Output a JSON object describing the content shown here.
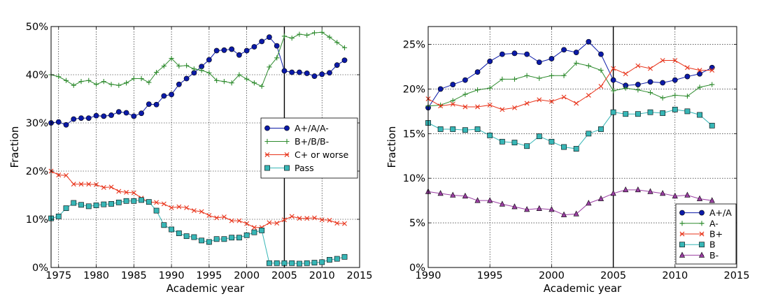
{
  "chart_data": [
    {
      "type": "line",
      "xlabel": "Academic year",
      "ylabel": "Fraction",
      "xlim": [
        1974,
        2015
      ],
      "ylim": [
        0,
        50
      ],
      "xticks": [
        1975,
        1980,
        1985,
        1990,
        1995,
        2000,
        2005,
        2010,
        2015
      ],
      "yticks": [
        0,
        10,
        20,
        30,
        40,
        50
      ],
      "ytick_labels": [
        "0%",
        "10%",
        "20%",
        "30%",
        "40%",
        "50%"
      ],
      "grid": true,
      "vline": 2005,
      "legend_position": "center-right",
      "x": [
        1974,
        1975,
        1976,
        1977,
        1978,
        1979,
        1980,
        1981,
        1982,
        1983,
        1984,
        1985,
        1986,
        1987,
        1988,
        1989,
        1990,
        1991,
        1992,
        1993,
        1994,
        1995,
        1996,
        1997,
        1998,
        1999,
        2000,
        2001,
        2002,
        2003,
        2004,
        2005,
        2006,
        2007,
        2008,
        2009,
        2010,
        2011,
        2012,
        2013
      ],
      "series": [
        {
          "name": "A+/A/A-",
          "color": "#0b1aa8",
          "marker": "circle",
          "values": [
            30.0,
            30.2,
            29.6,
            30.8,
            31.0,
            31.0,
            31.5,
            31.4,
            31.6,
            32.3,
            32.1,
            31.4,
            32.0,
            33.9,
            33.8,
            35.6,
            35.9,
            38.0,
            39.2,
            40.4,
            41.7,
            43.1,
            45.0,
            45.1,
            45.3,
            44.1,
            45.0,
            45.8,
            46.9,
            47.8,
            46.0,
            40.8,
            40.5,
            40.5,
            40.3,
            39.7,
            40.1,
            40.4,
            42.0,
            43.0
          ]
        },
        {
          "name": "B+/B/B-",
          "color": "#2e8b2e",
          "marker": "plus",
          "values": [
            40.0,
            39.6,
            38.8,
            37.8,
            38.6,
            38.8,
            38.0,
            38.6,
            38.0,
            37.8,
            38.3,
            39.2,
            39.2,
            38.4,
            40.5,
            41.8,
            43.4,
            41.8,
            41.9,
            41.2,
            40.9,
            40.4,
            38.8,
            38.6,
            38.3,
            40.0,
            39.1,
            38.3,
            37.6,
            41.6,
            43.5,
            48.0,
            47.6,
            48.4,
            48.2,
            48.7,
            48.8,
            47.8,
            46.7,
            45.6
          ]
        },
        {
          "name": "C+ or worse",
          "color": "#e8331a",
          "marker": "x",
          "values": [
            20.0,
            19.2,
            19.1,
            17.3,
            17.3,
            17.3,
            17.2,
            16.6,
            16.7,
            15.8,
            15.6,
            15.5,
            14.4,
            13.6,
            13.5,
            13.2,
            12.4,
            12.6,
            12.4,
            11.8,
            11.6,
            10.8,
            10.3,
            10.5,
            9.7,
            9.7,
            9.1,
            8.3,
            8.3,
            9.3,
            9.2,
            9.9,
            10.6,
            10.2,
            10.2,
            10.3,
            9.9,
            9.8,
            9.2,
            9.1
          ]
        },
        {
          "name": "Pass",
          "color": "#37b6b6",
          "marker": "square",
          "values": [
            10.2,
            10.6,
            12.3,
            13.4,
            13.0,
            12.7,
            12.9,
            13.1,
            13.2,
            13.5,
            13.8,
            13.8,
            14.0,
            13.6,
            11.8,
            8.8,
            7.9,
            7.1,
            6.5,
            6.3,
            5.6,
            5.3,
            5.9,
            5.9,
            6.2,
            6.2,
            6.7,
            7.3,
            7.7,
            0.9,
            0.9,
            0.9,
            0.9,
            0.8,
            0.9,
            1.0,
            1.1,
            1.6,
            1.8,
            2.2
          ]
        }
      ]
    },
    {
      "type": "line",
      "xlabel": "Academic year",
      "ylabel": "Fraction",
      "xlim": [
        1990,
        2015
      ],
      "ylim": [
        0,
        27
      ],
      "xticks": [
        1990,
        1995,
        2000,
        2005,
        2010,
        2015
      ],
      "yticks": [
        0,
        5,
        10,
        15,
        20,
        25
      ],
      "ytick_labels": [
        "0%",
        "5%",
        "10%",
        "15%",
        "20%",
        "25%"
      ],
      "grid": true,
      "vline": 2005,
      "legend_position": "lower-right",
      "x": [
        1990,
        1991,
        1992,
        1993,
        1994,
        1995,
        1996,
        1997,
        1998,
        1999,
        2000,
        2001,
        2002,
        2003,
        2004,
        2005,
        2006,
        2007,
        2008,
        2009,
        2010,
        2011,
        2012,
        2013
      ],
      "series": [
        {
          "name": "A+/A",
          "color": "#0b1aa8",
          "marker": "circle",
          "values": [
            17.9,
            20.0,
            20.5,
            21.0,
            21.9,
            23.1,
            23.9,
            24.0,
            23.9,
            23.0,
            23.4,
            24.4,
            24.1,
            25.3,
            23.9,
            21.0,
            20.4,
            20.5,
            20.8,
            20.7,
            21.0,
            21.4,
            21.7,
            22.4
          ]
        },
        {
          "name": "A-",
          "color": "#2e8b2e",
          "marker": "plus",
          "values": [
            18.1,
            18.2,
            18.7,
            19.4,
            19.9,
            20.1,
            21.1,
            21.1,
            21.5,
            21.2,
            21.5,
            21.5,
            22.9,
            22.6,
            22.1,
            19.8,
            20.1,
            19.9,
            19.6,
            19.0,
            19.3,
            19.2,
            20.2,
            20.5
          ]
        },
        {
          "name": "B+",
          "color": "#e8331a",
          "marker": "x",
          "values": [
            18.9,
            18.1,
            18.3,
            18.0,
            18.0,
            18.2,
            17.7,
            17.9,
            18.4,
            18.8,
            18.6,
            19.1,
            18.4,
            19.3,
            20.3,
            22.3,
            21.7,
            22.6,
            22.3,
            23.2,
            23.2,
            22.4,
            22.1,
            22.1
          ]
        },
        {
          "name": "B",
          "color": "#37b6b6",
          "marker": "square",
          "values": [
            16.2,
            15.5,
            15.5,
            15.4,
            15.5,
            14.8,
            14.1,
            14.0,
            13.6,
            14.7,
            14.1,
            13.5,
            13.3,
            15.0,
            15.5,
            17.4,
            17.2,
            17.2,
            17.4,
            17.3,
            17.7,
            17.5,
            17.1,
            15.9
          ]
        },
        {
          "name": "B-",
          "color": "#9b3fa3",
          "marker": "triangle",
          "values": [
            8.5,
            8.3,
            8.1,
            8.0,
            7.5,
            7.5,
            7.1,
            6.8,
            6.5,
            6.6,
            6.5,
            5.9,
            6.0,
            7.2,
            7.7,
            8.3,
            8.7,
            8.7,
            8.5,
            8.3,
            8.0,
            8.1,
            7.7,
            7.5
          ]
        }
      ]
    }
  ]
}
